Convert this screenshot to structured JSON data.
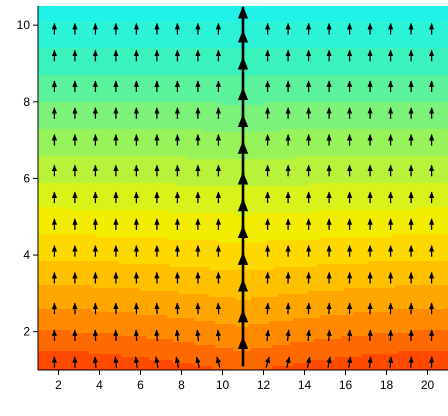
{
  "chart_data": {
    "type": "contour-vector",
    "title": "",
    "xlabel": "",
    "ylabel": "",
    "xlim": [
      1,
      21
    ],
    "ylim": [
      1,
      10.5
    ],
    "x_ticks": [
      2,
      4,
      6,
      8,
      10,
      12,
      14,
      16,
      18,
      20
    ],
    "y_ticks": [
      2,
      4,
      6,
      8,
      10
    ],
    "x_tick_labels": [
      "2",
      "4",
      "6",
      "8",
      "10",
      "12",
      "14",
      "16",
      "18",
      "20"
    ],
    "y_tick_labels": [
      "2",
      "4",
      "6",
      "8",
      "10"
    ],
    "grid": false,
    "legend": "none",
    "contour": {
      "field": "y + 0.9*(1 - |x - 11|/10)^1.5 * exp(-(y - 1)/2.5) - 0.8*exp(-(y - 1)/1.2)",
      "levels": [
        0.3,
        1.0,
        1.7,
        2.4,
        3.1,
        3.8,
        4.5,
        5.2,
        5.9,
        6.6,
        7.3,
        8.0,
        8.7,
        9.4,
        10.1
      ],
      "colors": [
        "#ff2b00",
        "#ff4a00",
        "#ff6a00",
        "#ff8a00",
        "#ffa600",
        "#ffc000",
        "#ffd800",
        "#f2ec00",
        "#d8f21a",
        "#b8f23a",
        "#98f25a",
        "#7cf27a",
        "#5cf29c",
        "#3cf2bc",
        "#2cf2d6",
        "#20f2e8"
      ]
    },
    "vectors": {
      "x": [
        1.8,
        2.8,
        3.8,
        4.8,
        5.8,
        6.8,
        7.8,
        8.8,
        9.8,
        11.0,
        12.2,
        13.2,
        14.2,
        15.2,
        16.2,
        17.2,
        18.2,
        19.2,
        20.2
      ],
      "y": [
        1.2,
        1.9,
        2.6,
        3.4,
        4.1,
        4.8,
        5.5,
        6.2,
        7.0,
        7.7,
        8.4,
        9.2,
        9.9
      ],
      "u_model": "sign(x - 11) * 0.4 * exp(-(y - 1)/0.8) * (1 - |x - 11|/10)",
      "v_model": "1.0 everywhere; 3.0 along x = 11 (central streamline)",
      "center_x": 11,
      "color": "#000000"
    }
  }
}
